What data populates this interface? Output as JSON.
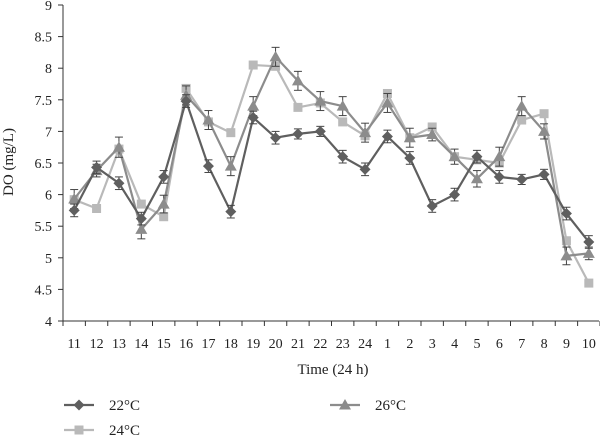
{
  "chart_data": {
    "type": "line",
    "xlabel": "Time (24 h)",
    "ylabel": "DO (mg/L)",
    "ylim": [
      4,
      9
    ],
    "yticks": [
      "4",
      "4.5",
      "5",
      "5.5",
      "6",
      "6.5",
      "7",
      "7.5",
      "8",
      "8.5",
      "9"
    ],
    "categories": [
      "11",
      "12",
      "13",
      "14",
      "15",
      "16",
      "17",
      "18",
      "19",
      "20",
      "21",
      "22",
      "23",
      "24",
      "1",
      "2",
      "3",
      "4",
      "5",
      "6",
      "7",
      "8",
      "9",
      "10"
    ],
    "grid": false,
    "legend_position": "bottom",
    "series": [
      {
        "name": "22°C",
        "marker": "diamond",
        "color": "#5f5f5f",
        "values": [
          5.75,
          6.43,
          6.18,
          5.62,
          6.28,
          7.48,
          6.45,
          5.73,
          7.22,
          6.9,
          6.96,
          7.0,
          6.6,
          6.4,
          6.92,
          6.58,
          5.82,
          6.0,
          6.6,
          6.28,
          6.24,
          6.32,
          5.7,
          5.25
        ],
        "errors": [
          0.1,
          0.1,
          0.1,
          0.1,
          0.1,
          0.1,
          0.1,
          0.1,
          0.1,
          0.1,
          0.08,
          0.08,
          0.1,
          0.1,
          0.1,
          0.1,
          0.1,
          0.1,
          0.1,
          0.1,
          0.08,
          0.08,
          0.1,
          0.1
        ]
      },
      {
        "name": "24°C",
        "marker": "square",
        "color": "#b9b9b9",
        "values": [
          5.92,
          5.78,
          6.72,
          5.85,
          5.65,
          7.68,
          7.15,
          6.98,
          8.05,
          8.03,
          7.38,
          7.45,
          7.15,
          6.93,
          7.6,
          6.9,
          7.07,
          6.6,
          6.55,
          6.5,
          7.18,
          7.28,
          5.27,
          4.6
        ],
        "errors": [
          0,
          0,
          0,
          0,
          0,
          0,
          0,
          0,
          0,
          0,
          0,
          0,
          0,
          0,
          0,
          0,
          0,
          0,
          0,
          0,
          0,
          0,
          0,
          0
        ]
      },
      {
        "name": "26°C",
        "marker": "triangle",
        "color": "#8c8c8c",
        "values": [
          5.93,
          6.38,
          6.75,
          5.45,
          5.85,
          7.57,
          7.18,
          6.45,
          7.4,
          8.18,
          7.8,
          7.48,
          7.4,
          6.98,
          7.45,
          6.9,
          6.95,
          6.6,
          6.25,
          6.6,
          7.4,
          7.0,
          5.03,
          5.07
        ],
        "errors": [
          0.15,
          0.1,
          0.16,
          0.15,
          0.14,
          0.15,
          0.15,
          0.15,
          0.15,
          0.15,
          0.15,
          0.15,
          0.15,
          0.15,
          0.15,
          0.15,
          0.1,
          0.12,
          0.13,
          0.15,
          0.15,
          0.12,
          0.14,
          0.1
        ]
      }
    ]
  }
}
